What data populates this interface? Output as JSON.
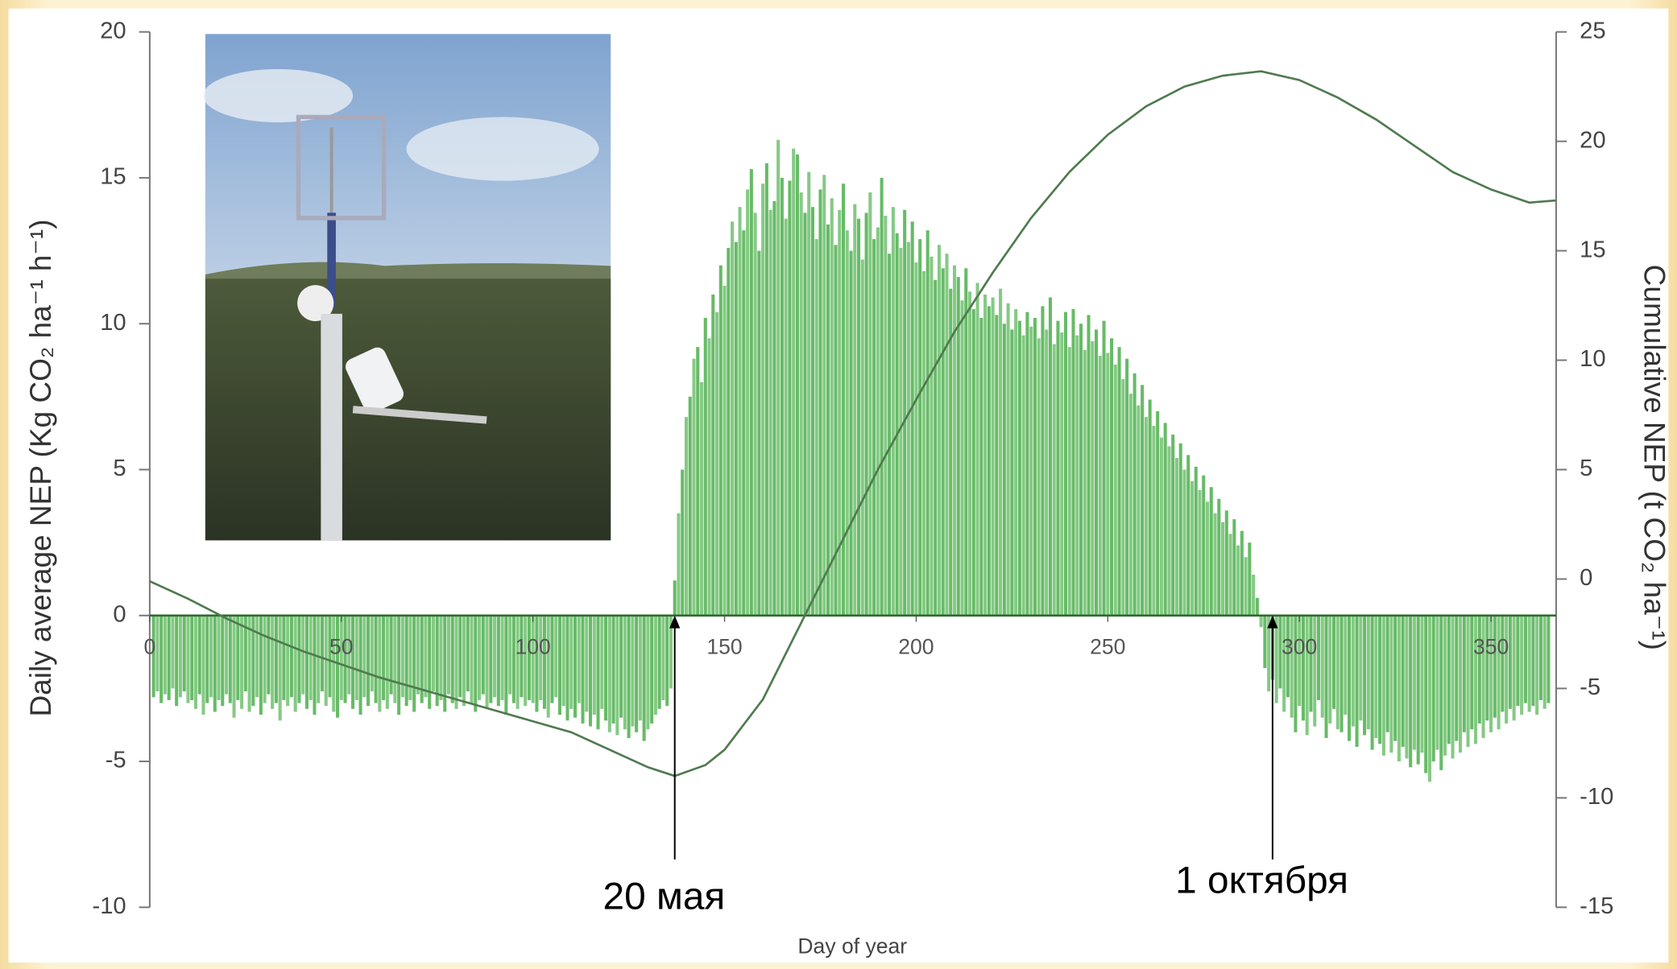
{
  "chart_data": {
    "type": "bar",
    "y_label": "Daily average NEP (Kg CO₂ ha⁻¹ h⁻¹)",
    "y2_label": "Cumulative NEP (t CO₂ ha⁻¹)",
    "x_label": "Day of year",
    "xlim": [
      0,
      367
    ],
    "xticks": [
      0,
      50,
      100,
      150,
      200,
      250,
      300,
      350
    ],
    "ylim": [
      -10,
      20
    ],
    "yticks": [
      -10,
      -5,
      0,
      5,
      10,
      15,
      20
    ],
    "y2lim": [
      -15,
      25
    ],
    "y2ticks": [
      -15,
      -10,
      -5,
      0,
      5,
      10,
      15,
      20,
      25
    ],
    "annotations": [
      {
        "text": "20 мая",
        "x": 137
      },
      {
        "text": "1 октября",
        "x": 293
      }
    ],
    "series": [
      {
        "type": "bar",
        "color": "#66bb66",
        "x": [
          1,
          2,
          3,
          4,
          5,
          6,
          7,
          8,
          9,
          10,
          11,
          12,
          13,
          14,
          15,
          16,
          17,
          18,
          19,
          20,
          21,
          22,
          23,
          24,
          25,
          26,
          27,
          28,
          29,
          30,
          31,
          32,
          33,
          34,
          35,
          36,
          37,
          38,
          39,
          40,
          41,
          42,
          43,
          44,
          45,
          46,
          47,
          48,
          49,
          50,
          51,
          52,
          53,
          54,
          55,
          56,
          57,
          58,
          59,
          60,
          61,
          62,
          63,
          64,
          65,
          66,
          67,
          68,
          69,
          70,
          71,
          72,
          73,
          74,
          75,
          76,
          77,
          78,
          79,
          80,
          81,
          82,
          83,
          84,
          85,
          86,
          87,
          88,
          89,
          90,
          91,
          92,
          93,
          94,
          95,
          96,
          97,
          98,
          99,
          100,
          101,
          102,
          103,
          104,
          105,
          106,
          107,
          108,
          109,
          110,
          111,
          112,
          113,
          114,
          115,
          116,
          117,
          118,
          119,
          120,
          121,
          122,
          123,
          124,
          125,
          126,
          127,
          128,
          129,
          130,
          131,
          132,
          133,
          134,
          135,
          136,
          137,
          138,
          139,
          140,
          141,
          142,
          143,
          144,
          145,
          146,
          147,
          148,
          149,
          150,
          151,
          152,
          153,
          154,
          155,
          156,
          157,
          158,
          159,
          160,
          161,
          162,
          163,
          164,
          165,
          166,
          167,
          168,
          169,
          170,
          171,
          172,
          173,
          174,
          175,
          176,
          177,
          178,
          179,
          180,
          181,
          182,
          183,
          184,
          185,
          186,
          187,
          188,
          189,
          190,
          191,
          192,
          193,
          194,
          195,
          196,
          197,
          198,
          199,
          200,
          201,
          202,
          203,
          204,
          205,
          206,
          207,
          208,
          209,
          210,
          211,
          212,
          213,
          214,
          215,
          216,
          217,
          218,
          219,
          220,
          221,
          222,
          223,
          224,
          225,
          226,
          227,
          228,
          229,
          230,
          231,
          232,
          233,
          234,
          235,
          236,
          237,
          238,
          239,
          240,
          241,
          242,
          243,
          244,
          245,
          246,
          247,
          248,
          249,
          250,
          251,
          252,
          253,
          254,
          255,
          256,
          257,
          258,
          259,
          260,
          261,
          262,
          263,
          264,
          265,
          266,
          267,
          268,
          269,
          270,
          271,
          272,
          273,
          274,
          275,
          276,
          277,
          278,
          279,
          280,
          281,
          282,
          283,
          284,
          285,
          286,
          287,
          288,
          289,
          290,
          291,
          292,
          293,
          294,
          295,
          296,
          297,
          298,
          299,
          300,
          301,
          302,
          303,
          304,
          305,
          306,
          307,
          308,
          309,
          310,
          311,
          312,
          313,
          314,
          315,
          316,
          317,
          318,
          319,
          320,
          321,
          322,
          323,
          324,
          325,
          326,
          327,
          328,
          329,
          330,
          331,
          332,
          333,
          334,
          335,
          336,
          337,
          338,
          339,
          340,
          341,
          342,
          343,
          344,
          345,
          346,
          347,
          348,
          349,
          350,
          351,
          352,
          353,
          354,
          355,
          356,
          357,
          358,
          359,
          360,
          361,
          362,
          363,
          364,
          365
        ],
        "values": [
          -2.8,
          -2.6,
          -3.0,
          -2.7,
          -2.9,
          -2.5,
          -3.1,
          -2.8,
          -2.6,
          -3.0,
          -2.9,
          -3.2,
          -2.7,
          -3.4,
          -3.0,
          -2.8,
          -3.3,
          -2.9,
          -3.1,
          -2.7,
          -3.0,
          -3.5,
          -2.9,
          -3.2,
          -2.6,
          -3.3,
          -3.1,
          -2.8,
          -3.4,
          -3.0,
          -2.7,
          -3.2,
          -3.0,
          -3.6,
          -2.9,
          -3.1,
          -2.8,
          -3.3,
          -3.0,
          -2.7,
          -3.2,
          -2.9,
          -3.4,
          -3.0,
          -2.6,
          -3.1,
          -2.8,
          -3.3,
          -3.5,
          -2.9,
          -3.0,
          -2.7,
          -3.2,
          -2.9,
          -3.4,
          -2.8,
          -3.1,
          -2.6,
          -3.0,
          -3.3,
          -2.9,
          -3.2,
          -2.7,
          -3.0,
          -3.4,
          -2.8,
          -3.1,
          -2.9,
          -3.3,
          -2.7,
          -3.0,
          -2.8,
          -3.2,
          -2.6,
          -3.1,
          -2.9,
          -3.3,
          -2.7,
          -3.0,
          -3.2,
          -2.8,
          -3.1,
          -2.6,
          -3.0,
          -3.3,
          -2.9,
          -2.7,
          -3.2,
          -3.0,
          -2.8,
          -3.1,
          -2.9,
          -3.4,
          -2.7,
          -3.0,
          -3.2,
          -2.8,
          -3.1,
          -2.9,
          -3.0,
          -3.3,
          -2.9,
          -3.2,
          -3.5,
          -3.0,
          -2.8,
          -3.4,
          -3.1,
          -3.6,
          -3.2,
          -3.5,
          -3.0,
          -3.7,
          -3.3,
          -3.8,
          -3.4,
          -3.9,
          -3.2,
          -3.6,
          -4.0,
          -3.7,
          -4.1,
          -3.5,
          -3.9,
          -4.2,
          -3.8,
          -4.0,
          -3.6,
          -4.3,
          -3.9,
          -3.7,
          -3.4,
          -3.2,
          -2.9,
          -3.1,
          -2.5,
          1.2,
          3.5,
          5.0,
          6.8,
          7.5,
          8.8,
          9.2,
          8.0,
          10.2,
          9.5,
          11.0,
          10.4,
          12.0,
          11.3,
          12.6,
          13.5,
          12.8,
          14.0,
          13.2,
          14.6,
          15.3,
          13.8,
          12.5,
          14.8,
          15.5,
          13.9,
          14.2,
          16.3,
          15.0,
          13.6,
          14.9,
          16.0,
          15.8,
          14.5,
          13.8,
          15.2,
          14.0,
          12.9,
          14.6,
          15.1,
          13.4,
          14.3,
          12.7,
          13.9,
          14.8,
          13.2,
          12.5,
          14.1,
          13.6,
          12.2,
          13.8,
          14.5,
          12.9,
          13.3,
          15.0,
          13.7,
          12.4,
          14.0,
          13.1,
          12.6,
          13.9,
          12.8,
          13.5,
          12.1,
          12.9,
          11.8,
          13.2,
          12.3,
          11.5,
          12.7,
          11.9,
          12.4,
          11.2,
          12.0,
          11.6,
          10.8,
          11.9,
          11.1,
          10.5,
          11.4,
          10.2,
          11.0,
          10.6,
          10.9,
          10.3,
          11.2,
          10.0,
          10.7,
          9.8,
          10.5,
          10.1,
          9.6,
          10.4,
          9.9,
          10.2,
          9.5,
          10.6,
          9.8,
          10.9,
          9.3,
          10.1,
          9.7,
          10.4,
          9.2,
          10.5,
          9.6,
          10.0,
          9.1,
          10.3,
          9.4,
          9.8,
          8.9,
          10.1,
          9.0,
          9.5,
          8.6,
          9.2,
          8.1,
          8.8,
          7.6,
          8.3,
          7.2,
          7.9,
          6.8,
          7.4,
          6.5,
          7.0,
          6.1,
          6.6,
          5.8,
          6.2,
          5.4,
          5.9,
          5.0,
          5.5,
          4.6,
          5.1,
          4.3,
          4.8,
          3.9,
          4.4,
          3.5,
          4.0,
          3.2,
          3.6,
          2.8,
          3.3,
          2.4,
          2.9,
          2.0,
          2.5,
          1.4,
          0.6,
          -0.4,
          -1.8,
          -2.6,
          -2.2,
          -3.0,
          -2.5,
          -3.3,
          -2.8,
          -3.5,
          -4.0,
          -3.1,
          -3.6,
          -4.1,
          -3.3,
          -3.8,
          -2.9,
          -3.5,
          -4.2,
          -3.7,
          -3.2,
          -3.9,
          -4.0,
          -3.4,
          -4.3,
          -3.8,
          -4.5,
          -3.6,
          -4.1,
          -3.9,
          -4.6,
          -4.2,
          -4.4,
          -4.8,
          -4.0,
          -4.7,
          -4.3,
          -5.0,
          -4.5,
          -4.9,
          -5.2,
          -4.6,
          -5.1,
          -4.7,
          -5.4,
          -5.7,
          -5.0,
          -4.6,
          -5.3,
          -4.8,
          -4.4,
          -4.9,
          -4.3,
          -4.7,
          -4.0,
          -4.5,
          -3.9,
          -4.4,
          -3.7,
          -4.2,
          -3.6,
          -4.0,
          -3.5,
          -3.9,
          -3.3,
          -3.7,
          -3.2,
          -3.6,
          -3.1,
          -3.4,
          -3.0,
          -3.3,
          -3.1,
          -3.4,
          -2.9,
          -3.2,
          -3.0
        ]
      },
      {
        "type": "line",
        "axis": "y2",
        "color": "#4f7a4f",
        "x": [
          0,
          10,
          20,
          30,
          40,
          50,
          60,
          70,
          80,
          90,
          100,
          110,
          120,
          130,
          137,
          145,
          150,
          160,
          170,
          180,
          190,
          200,
          210,
          220,
          230,
          240,
          250,
          260,
          270,
          280,
          290,
          300,
          310,
          320,
          330,
          340,
          350,
          360,
          367
        ],
        "values": [
          -0.1,
          -0.9,
          -1.8,
          -2.6,
          -3.3,
          -3.9,
          -4.5,
          -5.0,
          -5.5,
          -6.0,
          -6.5,
          -7.0,
          -7.8,
          -8.6,
          -9.0,
          -8.5,
          -7.8,
          -5.5,
          -2.0,
          1.5,
          5.0,
          8.2,
          11.3,
          14.0,
          16.5,
          18.6,
          20.3,
          21.6,
          22.5,
          23.0,
          23.2,
          22.8,
          22.0,
          21.0,
          19.8,
          18.6,
          17.8,
          17.2,
          17.3
        ]
      }
    ]
  }
}
